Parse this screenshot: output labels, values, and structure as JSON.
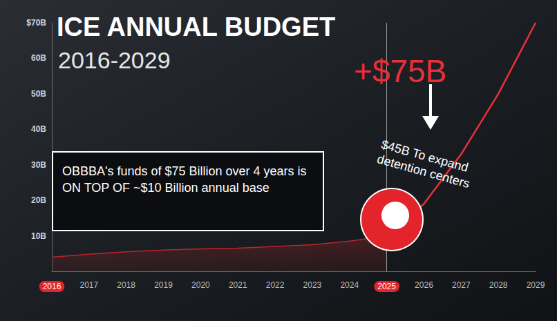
{
  "chart_data": {
    "type": "line",
    "title": "ICE ANNUAL BUDGET",
    "subtitle": "2016-2029",
    "categories": [
      "2016",
      "2017",
      "2018",
      "2019",
      "2020",
      "2021",
      "2022",
      "2023",
      "2024",
      "2025",
      "2026",
      "2027",
      "2028",
      "2029"
    ],
    "series": [
      {
        "type": "area",
        "color": "#b8262c",
        "values": [
          4,
          4.8,
          5.5,
          6,
          6.3,
          6.5,
          7,
          7.5,
          8.5,
          10,
          null,
          null,
          null,
          null
        ]
      },
      {
        "type": "line",
        "color": "#e8303a",
        "values": [
          null,
          null,
          null,
          null,
          null,
          null,
          null,
          null,
          null,
          10,
          19,
          33,
          50,
          70
        ]
      }
    ],
    "ylim": [
      0,
      70
    ],
    "yticks": [
      {
        "value": 10,
        "label": "10B"
      },
      {
        "value": 20,
        "label": "20B"
      },
      {
        "value": 30,
        "label": "30B"
      },
      {
        "value": 40,
        "label": "40B"
      },
      {
        "value": 50,
        "label": "50B"
      },
      {
        "value": 60,
        "label": "60B"
      },
      {
        "value": 70,
        "label": "$70B"
      }
    ],
    "grid": false,
    "annotations": [
      "+$75B",
      "$45B To expand detention centers",
      "OBBBA's funds of $75 Billion over 4 years is ON TOP OF ~$10 Billion annual base"
    ]
  }
}
